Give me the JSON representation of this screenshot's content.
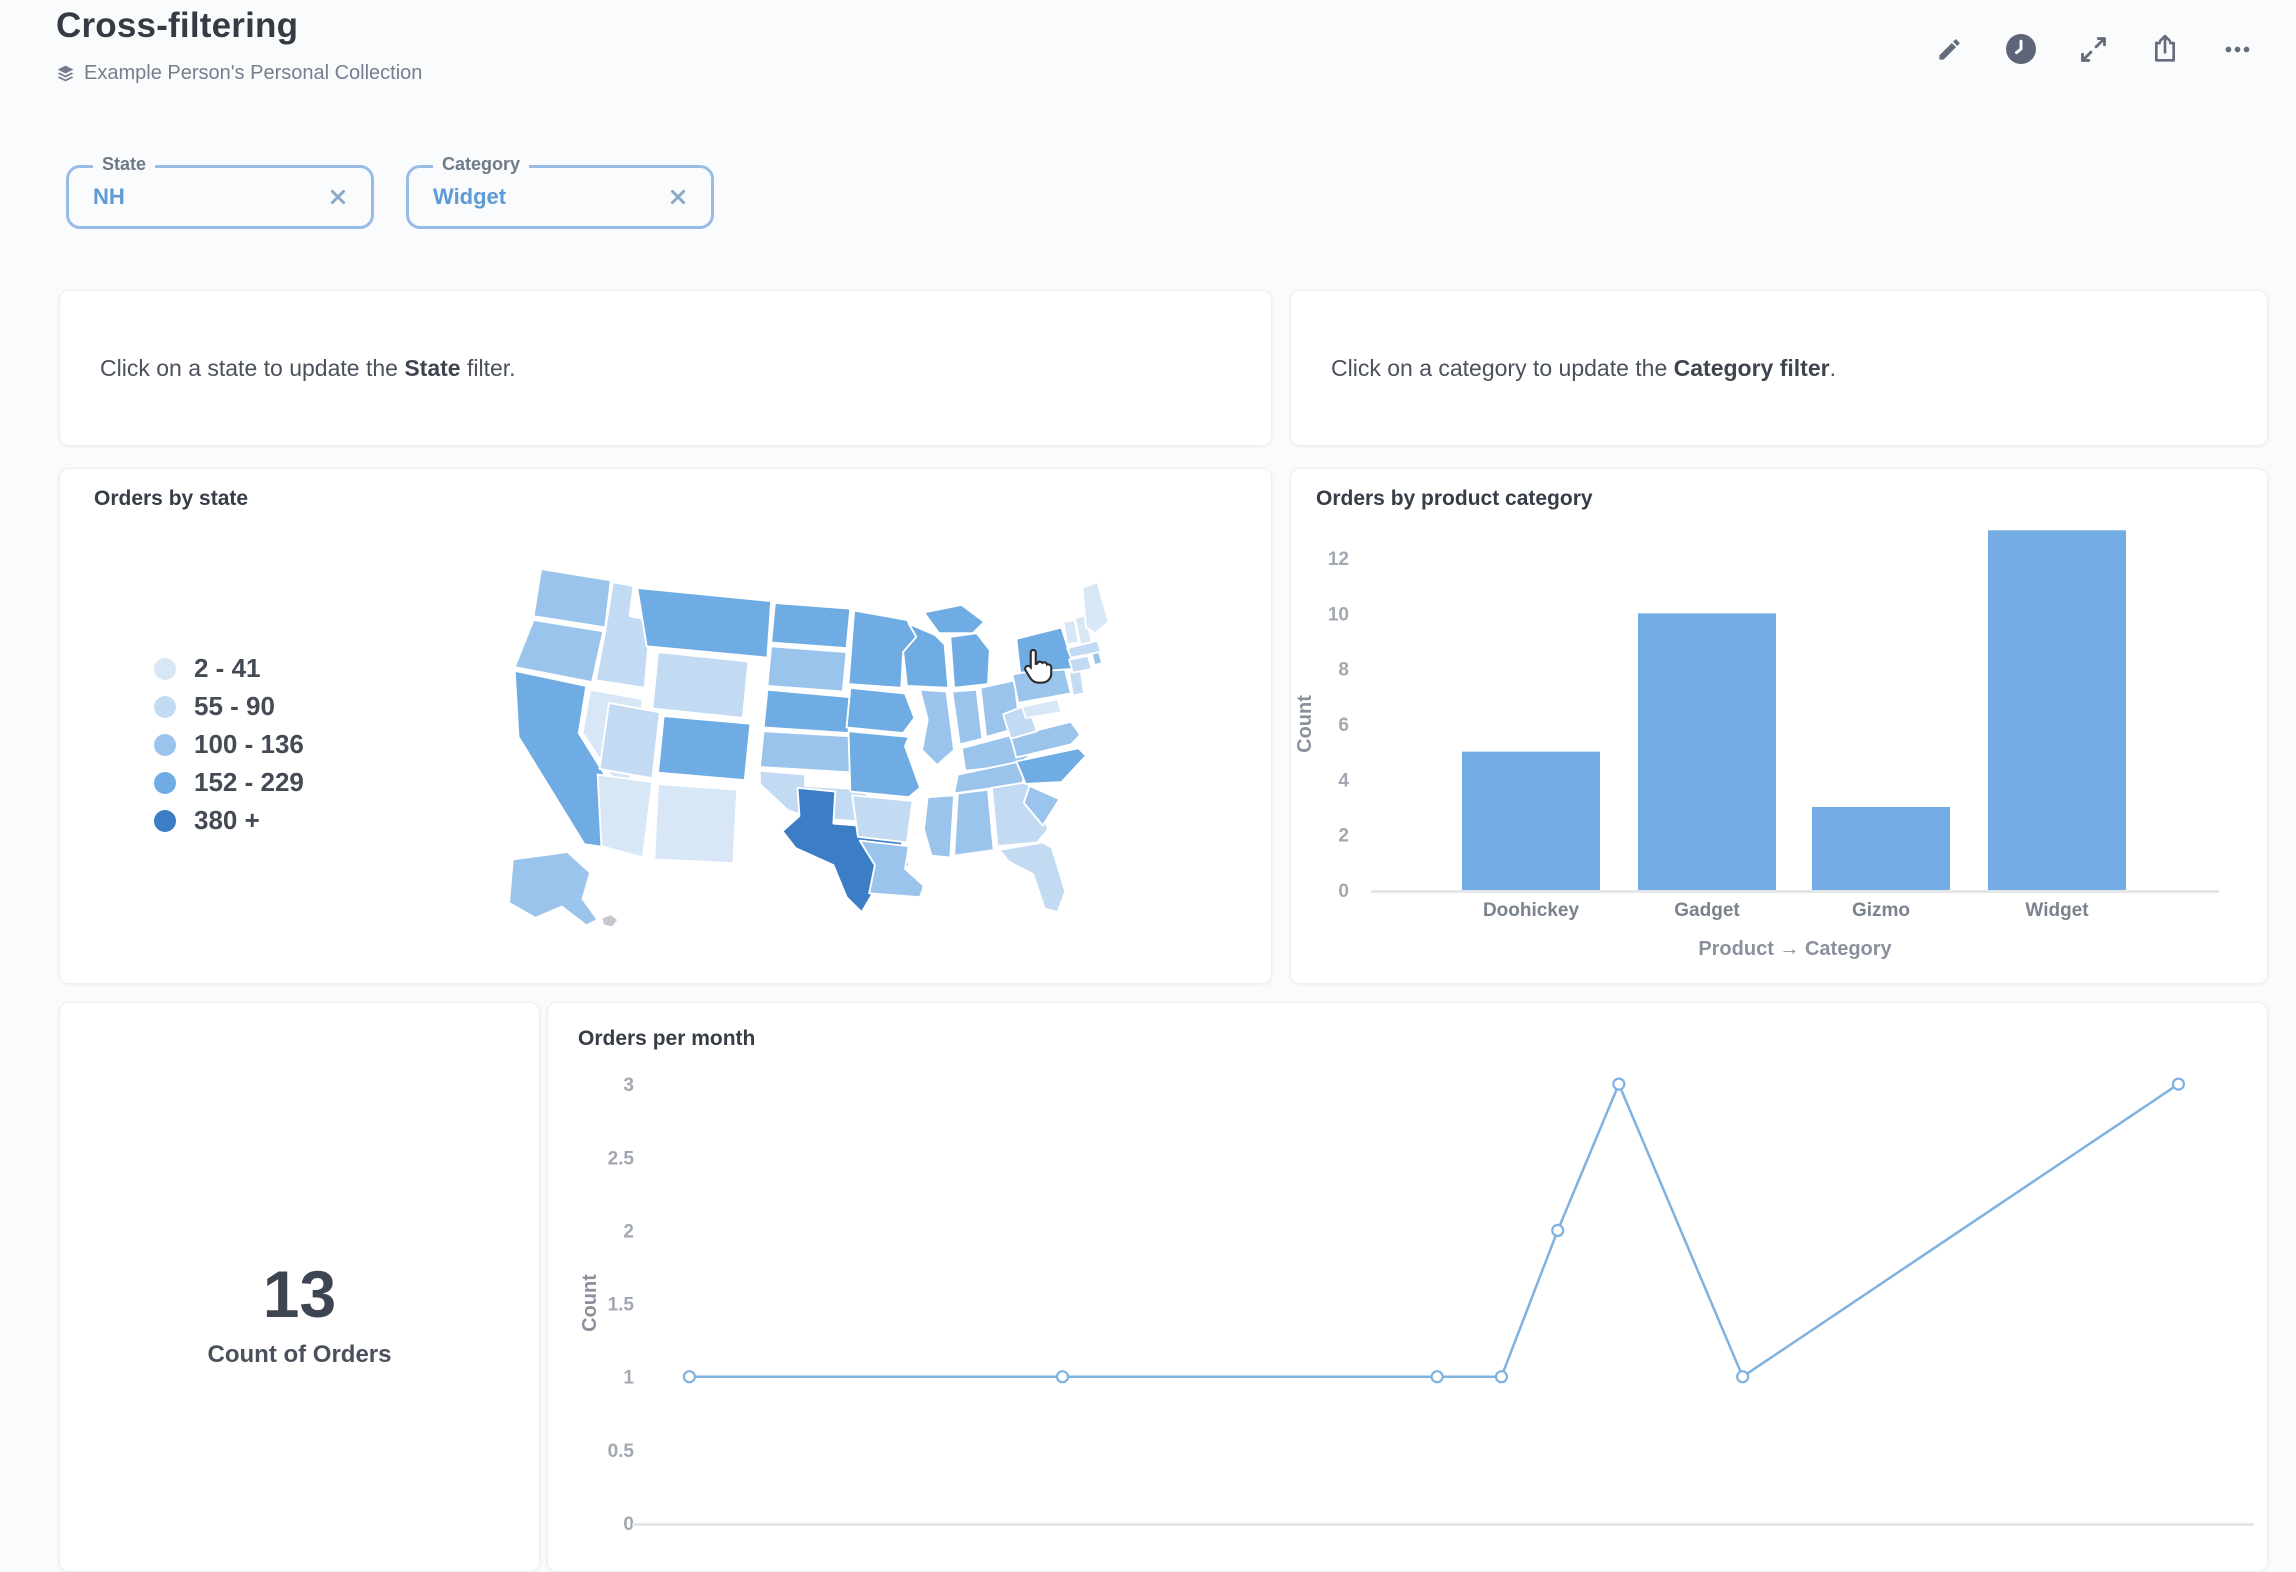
{
  "header": {
    "title": "Cross-filtering",
    "collection": "Example Person's Personal Collection"
  },
  "toolbar": {
    "icons": [
      "edit-pencil",
      "auto-refresh-clock",
      "fullscreen-expand",
      "share",
      "more-options"
    ]
  },
  "filters": [
    {
      "label": "State",
      "value": "NH"
    },
    {
      "label": "Category",
      "value": "Widget"
    }
  ],
  "text_cards": [
    {
      "before": "Click on a state to update the ",
      "bold": "State",
      "after": " filter."
    },
    {
      "before": "Click on a category to update the ",
      "bold": "Category filter",
      "after": "."
    }
  ],
  "colors": {
    "brand": "#509EE3",
    "bar_fill": "#73ADE4",
    "line_stroke": "#7FB2E0",
    "baseline": "#DFE3E6",
    "filter_border": "#98BCE6",
    "filter_value": "#5E9AD6",
    "axis_text": "#A2A8B2",
    "card_title_text": "#363D47",
    "page_background": "#FAFBFC",
    "clock_badge": "#5E6579"
  },
  "chart_data": [
    {
      "type": "choropleth",
      "title": "Orders by state",
      "region": "united_states",
      "legend": [
        {
          "label": "2 - 41",
          "color": "#D8E7F6"
        },
        {
          "label": "55 - 90",
          "color": "#C2DAF2"
        },
        {
          "label": "100 - 136",
          "color": "#9AC4EC"
        },
        {
          "label": "152 - 229",
          "color": "#6FACE3"
        },
        {
          "label": "380 +",
          "color": "#3C7EC6"
        }
      ],
      "no_data_color": "#C4C9CF",
      "state_buckets": {
        "WA": 2,
        "OR": 2,
        "CA": 3,
        "NV": 0,
        "ID": 1,
        "MT": 3,
        "WY": 1,
        "UT": 1,
        "CO": 3,
        "AZ": 0,
        "NM": 0,
        "ND": 3,
        "SD": 2,
        "NE": 3,
        "KS": 2,
        "OK": 1,
        "TX": 4,
        "MN": 3,
        "IA": 3,
        "MO": 3,
        "AR": 1,
        "LA": 2,
        "WI": 3,
        "IL": 2,
        "MI": 3,
        "IN": 2,
        "OH": 2,
        "KY": 2,
        "TN": 2,
        "MS": 2,
        "AL": 2,
        "GA": 1,
        "FL": 1,
        "SC": 2,
        "NC": 3,
        "VA": 2,
        "WV": 1,
        "PA": 2,
        "NY": 3,
        "NJ": 1,
        "MD": 0,
        "VT": 0,
        "NH": 0,
        "ME": 0,
        "MA": 1,
        "CT": 1,
        "RI": 2,
        "AK": 2,
        "HI": -1
      }
    },
    {
      "type": "bar",
      "title": "Orders by product category",
      "categories": [
        "Doohickey",
        "Gadget",
        "Gizmo",
        "Widget"
      ],
      "values": [
        5,
        10,
        3,
        13
      ],
      "xlabel": "Product → Category",
      "ylabel": "Count",
      "yticks": [
        0,
        2,
        4,
        6,
        8,
        10,
        12
      ],
      "ylim": [
        0,
        13.5
      ],
      "grid": false,
      "legend_position": "none"
    },
    {
      "type": "scalar",
      "value": "13",
      "label": "Count of Orders"
    },
    {
      "type": "line",
      "title": "Orders per month",
      "ylabel": "Count",
      "xlabel": "",
      "yticks": [
        3,
        2.5,
        2,
        1.5,
        1,
        0.5,
        0
      ],
      "ylim": [
        0,
        3.2
      ],
      "x_axis_labels_visible": false,
      "points": [
        {
          "x_pct": 2.7,
          "y": 1
        },
        {
          "x_pct": 25.9,
          "y": 1
        },
        {
          "x_pct": 49.2,
          "y": 1
        },
        {
          "x_pct": 53.2,
          "y": 1
        },
        {
          "x_pct": 56.7,
          "y": 2
        },
        {
          "x_pct": 60.5,
          "y": 3
        },
        {
          "x_pct": 68.2,
          "y": 1
        },
        {
          "x_pct": 95.3,
          "y": 3
        }
      ]
    }
  ]
}
